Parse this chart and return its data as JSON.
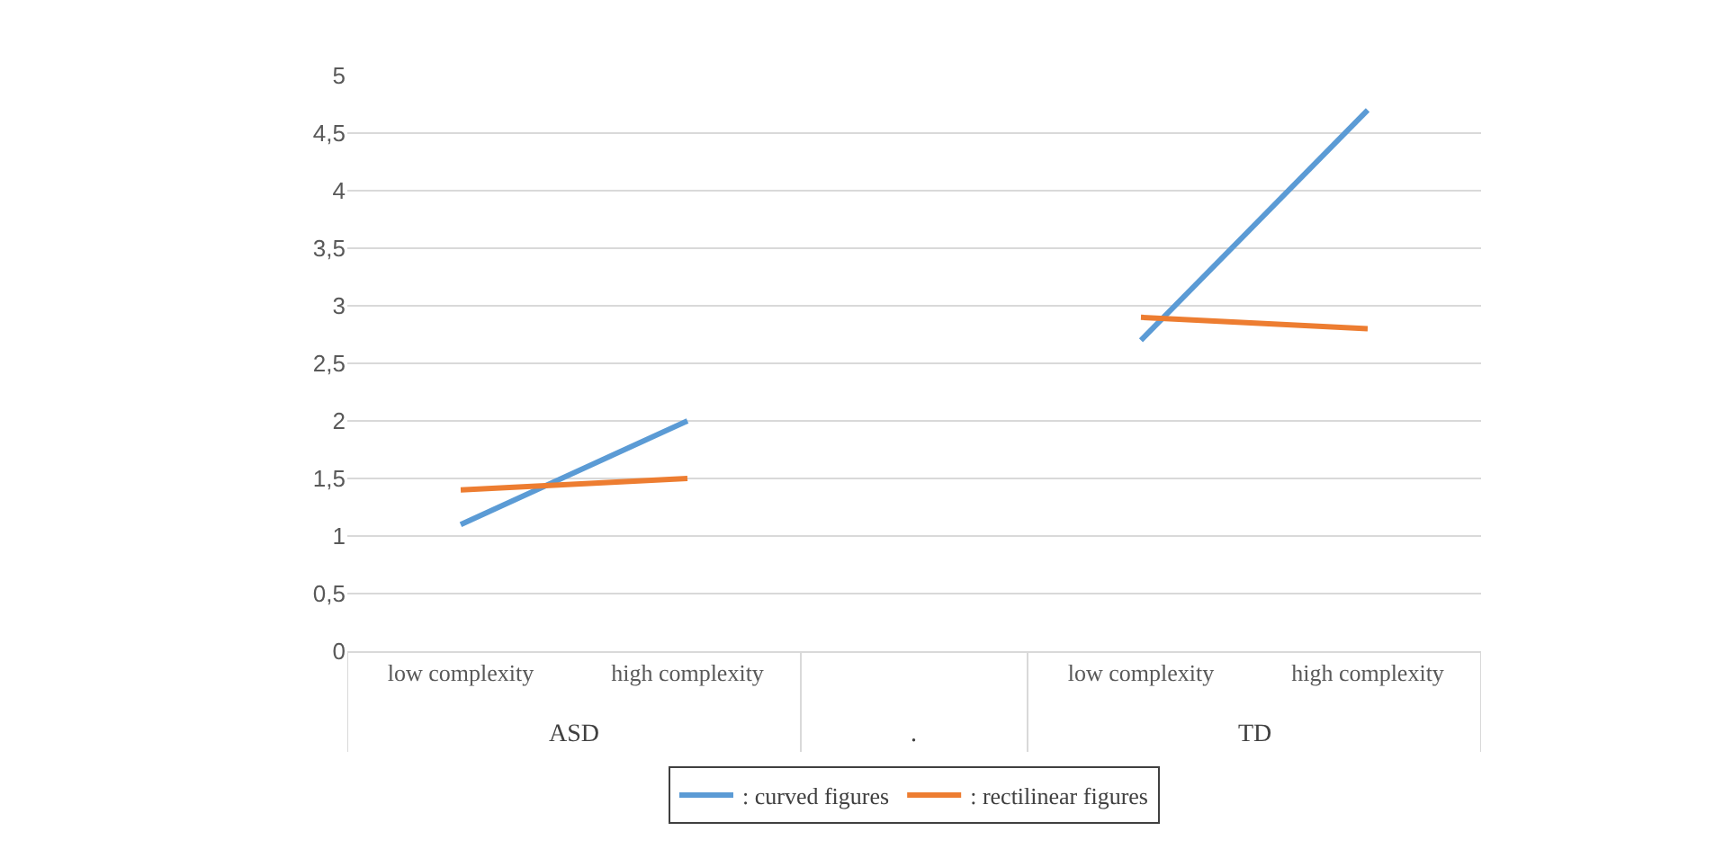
{
  "chart_data": {
    "type": "line",
    "categories": [
      "low complexity",
      "high complexity",
      null,
      "low complexity",
      "high complexity"
    ],
    "series": [
      {
        "name": ": curved figures",
        "color": "#5b9bd5",
        "values": [
          1.1,
          2.0,
          null,
          2.7,
          4.7
        ]
      },
      {
        "name": ": rectilinear figures",
        "color": "#ed7d31",
        "values": [
          1.4,
          1.5,
          null,
          2.9,
          2.8
        ]
      }
    ],
    "ylim": [
      0,
      5
    ],
    "yticks": [
      0,
      {
        "value": 0.5,
        "label": "0,5"
      },
      1,
      {
        "value": 1.5,
        "label": "1,5"
      },
      2,
      {
        "value": 2.5,
        "label": "2,5"
      },
      3,
      {
        "value": 3.5,
        "label": "3,5"
      },
      4,
      {
        "value": 4.5,
        "label": "4,5"
      },
      5
    ],
    "grid": "y",
    "legend": "bottom",
    "marker": "none",
    "line_style": "solid",
    "annotations": [
      "ASD",
      ".",
      "TD"
    ]
  }
}
